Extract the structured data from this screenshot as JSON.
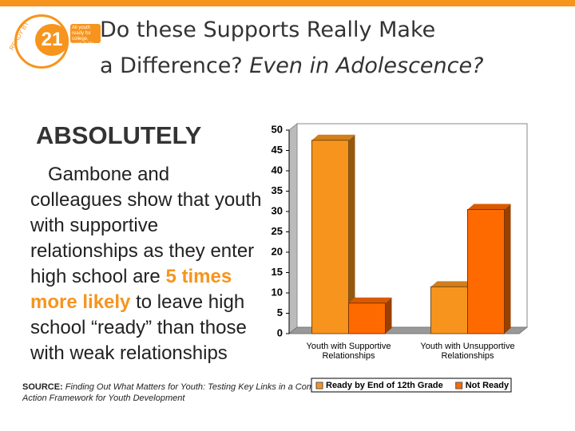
{
  "header": {
    "title_line1": "Do these Supports Really Make",
    "title_line2_plain": "a Difference? ",
    "title_line2_italic": "Even in Adolescence?"
  },
  "logo": {
    "arc_text": "READY BY",
    "number": "21",
    "tagline": "All youth ready for college, work & life."
  },
  "body": {
    "headline": "ABSOLUTELY",
    "text_before": "Gambone and colleagues show that youth with supportive relationships as they enter high school are ",
    "highlight": "5 times more likely",
    "text_after": " to leave high school “ready” than those with weak relationships"
  },
  "source": {
    "label": "SOURCE:",
    "text": " Finding Out What Matters for Youth: Testing Key Links in a Community Action Framework for Youth Development"
  },
  "chart_data": {
    "type": "bar",
    "categories": [
      "Youth with Supportive Relationships",
      "Youth with Unsupportive Relationships"
    ],
    "series": [
      {
        "name": "Ready by End of 12th Grade",
        "color": "#f7941d",
        "values": [
          47.5,
          11.5
        ]
      },
      {
        "name": "Not Ready",
        "color": "#ff6a00",
        "values": [
          7.5,
          30.5
        ]
      }
    ],
    "ylim": [
      0,
      50
    ],
    "yticks": [
      0,
      5,
      10,
      15,
      20,
      25,
      30,
      35,
      40,
      45,
      50
    ],
    "grid": false,
    "legend": "bottom"
  }
}
